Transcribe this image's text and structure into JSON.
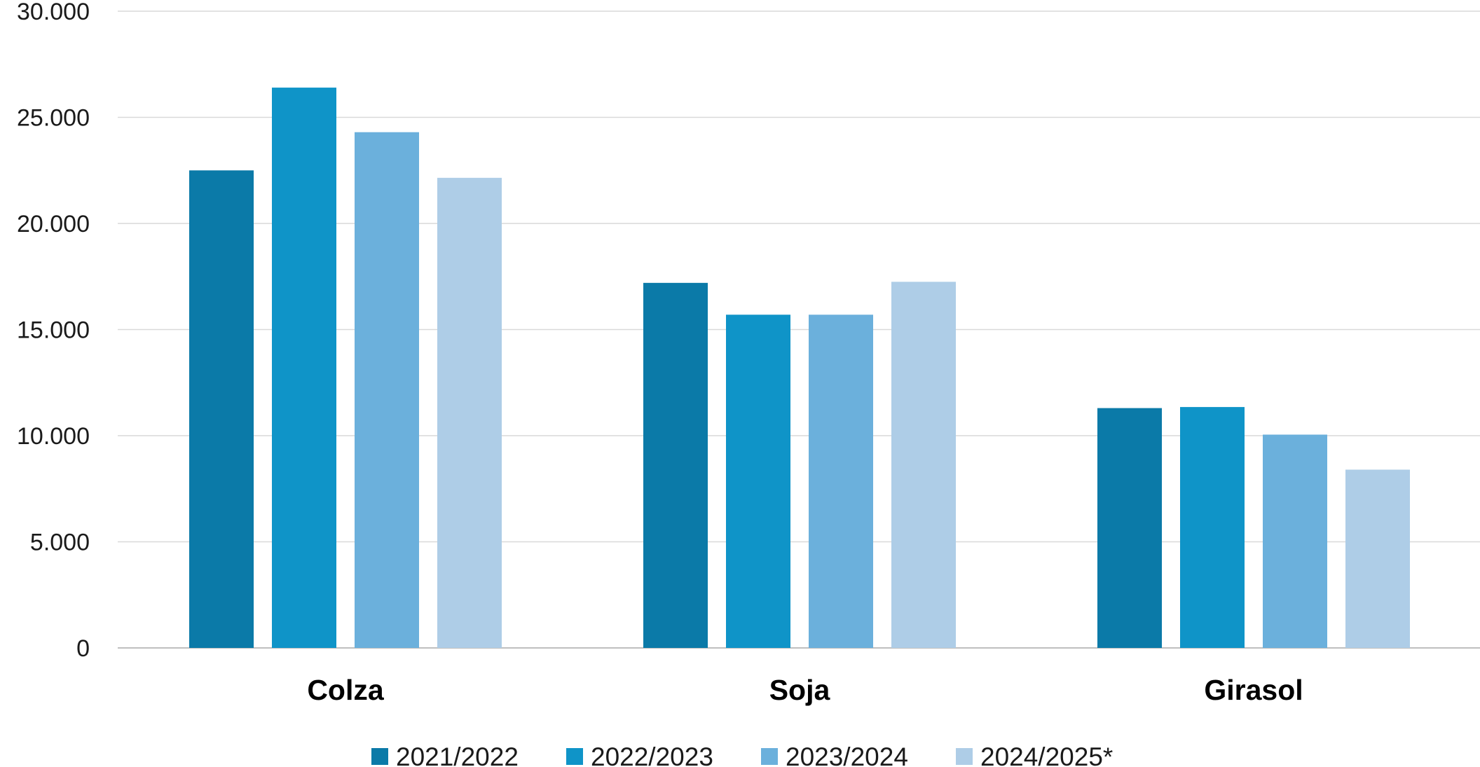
{
  "chart_data": {
    "type": "bar",
    "categories": [
      "Colza",
      "Soja",
      "Girasol"
    ],
    "series": [
      {
        "name": "2021/2022",
        "color": "#0b7aa8",
        "values": [
          22500,
          17200,
          11300
        ]
      },
      {
        "name": "2022/2023",
        "color": "#0f94c8",
        "values": [
          26400,
          15700,
          11350
        ]
      },
      {
        "name": "2023/2024",
        "color": "#6bb0dc",
        "values": [
          24300,
          15700,
          10050
        ]
      },
      {
        "name": "2024/2025*",
        "color": "#aecde7",
        "values": [
          22150,
          17250,
          8400
        ]
      }
    ],
    "yticks": [
      "0",
      "5.000",
      "10.000",
      "15.000",
      "20.000",
      "25.000",
      "30.000"
    ],
    "ylim": [
      0,
      30000
    ],
    "grid": true,
    "legend_position": "bottom"
  }
}
